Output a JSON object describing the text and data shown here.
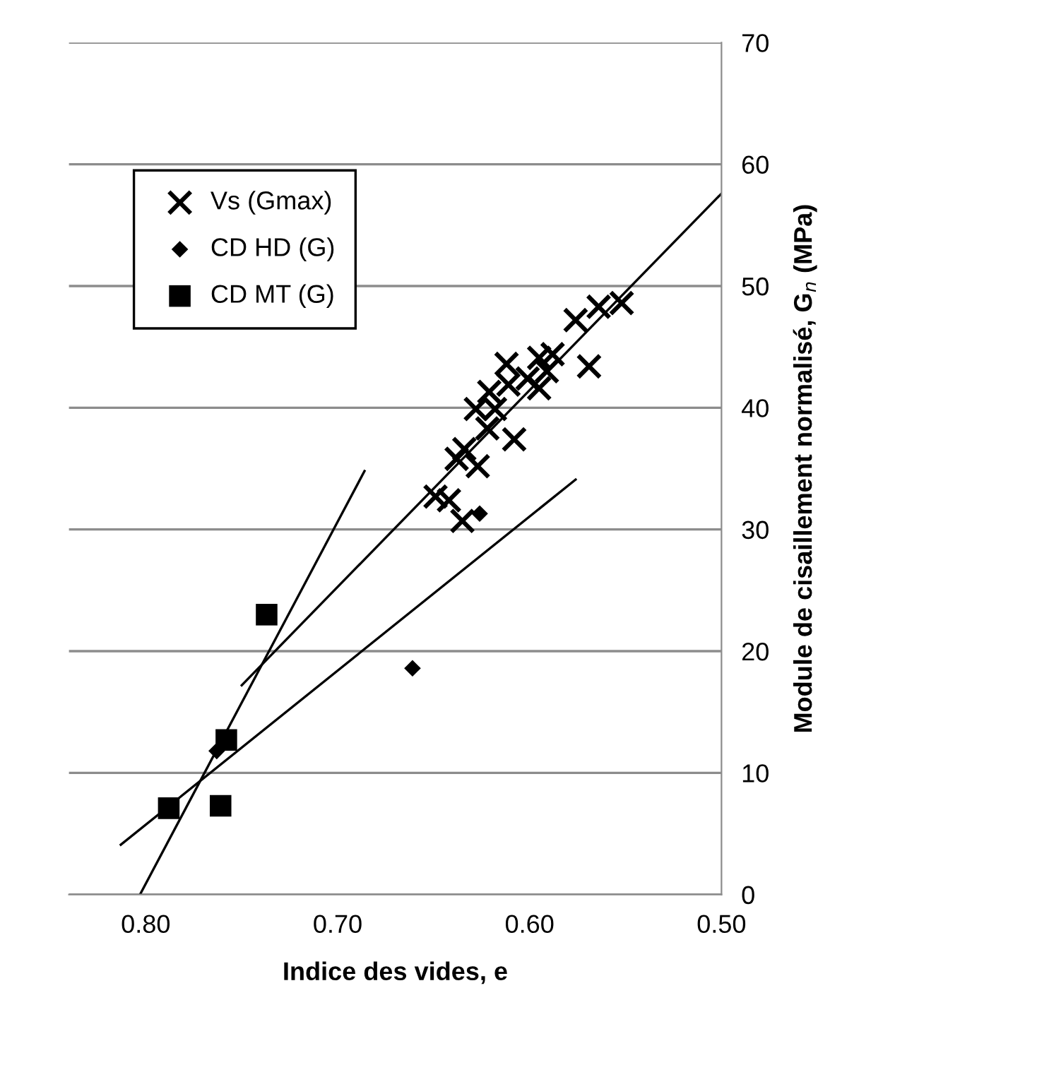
{
  "chart_data": {
    "type": "scatter",
    "xlabel": "Indice des vides, e",
    "ylabel": "Module de cisaillement normalisé, G$_{n}$ (MPa)",
    "xlim": [
      0.84,
      0.5
    ],
    "xticks": [
      {
        "value": 0.8,
        "label": "0.80"
      },
      {
        "value": 0.7,
        "label": "0.70"
      },
      {
        "value": 0.6,
        "label": "0.60"
      },
      {
        "value": 0.5,
        "label": "0.50"
      }
    ],
    "ylim": [
      0,
      70
    ],
    "yticks": [
      0,
      10,
      20,
      30,
      40,
      50,
      60,
      70
    ],
    "grid": "y",
    "legend": "top left",
    "series": [
      {
        "name": "Vs (Gmax)",
        "color": "#000000",
        "marker": "cross",
        "x": [
          0.552,
          0.564,
          0.576,
          0.569,
          0.588,
          0.595,
          0.591,
          0.595,
          0.601,
          0.612,
          0.611,
          0.621,
          0.618,
          0.628,
          0.622,
          0.608,
          0.627,
          0.634,
          0.638,
          0.649,
          0.642,
          0.635
        ],
        "values": [
          48.6,
          48.3,
          47.2,
          43.4,
          44.4,
          44.1,
          43.0,
          41.6,
          42.4,
          43.6,
          41.9,
          41.3,
          39.9,
          39.9,
          38.3,
          37.4,
          35.2,
          36.6,
          35.8,
          32.7,
          32.4,
          30.7
        ]
      },
      {
        "name": "CD HD (G)",
        "color": "#000000",
        "marker": "diamond",
        "x": [
          0.763,
          0.661,
          0.626
        ],
        "values": [
          11.8,
          18.6,
          31.3
        ]
      },
      {
        "name": "CD MT (G)",
        "color": "#000000",
        "marker": "square",
        "x": [
          0.788,
          0.761,
          0.758,
          0.737
        ],
        "values": [
          7.1,
          7.3,
          12.7,
          23.0
        ]
      },
      {
        "type": "line",
        "color": "#000000",
        "marker": "none",
        "x": [
          0.75,
          0.5
        ],
        "values": [
          17.2,
          57.6
        ]
      },
      {
        "type": "line",
        "color": "#000000",
        "marker": "none",
        "x": [
          0.813,
          0.576
        ],
        "values": [
          4.1,
          34.1
        ]
      },
      {
        "type": "line",
        "color": "#000000",
        "marker": "none",
        "x": [
          0.803,
          0.686
        ],
        "values": [
          0,
          34.8
        ]
      }
    ]
  }
}
